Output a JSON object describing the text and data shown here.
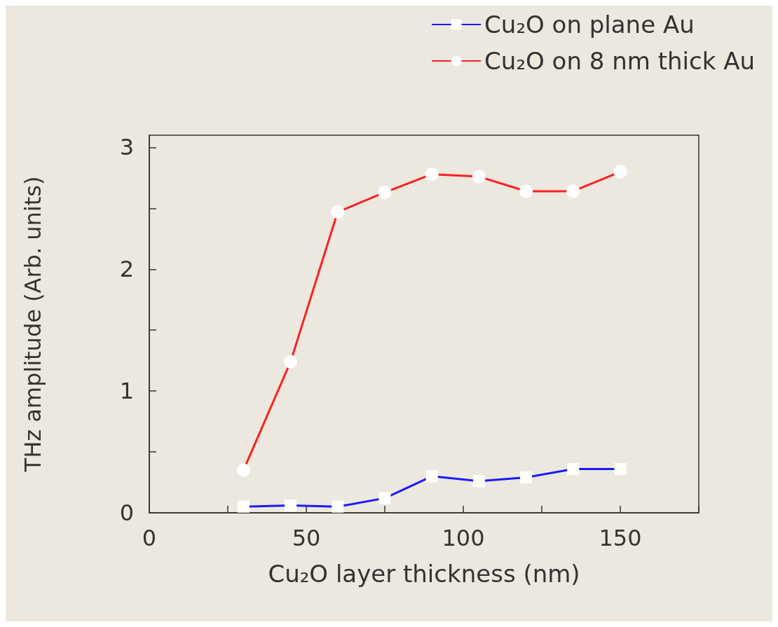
{
  "chart_data": {
    "type": "line",
    "xlabel": "Cu₂O layer thickness (nm)",
    "ylabel": "THz amplitude (Arb. units)",
    "x": [
      30,
      45,
      60,
      75,
      90,
      105,
      120,
      135,
      150
    ],
    "series": [
      {
        "name": "Cu₂O on plane Au",
        "color": "#1a1aff",
        "marker": "square",
        "values": [
          0.05,
          0.06,
          0.05,
          0.12,
          0.3,
          0.26,
          0.29,
          0.36,
          0.36
        ]
      },
      {
        "name": "Cu₂O on 8 nm thick Au",
        "color": "#ff2020",
        "marker": "circle",
        "values": [
          0.35,
          1.24,
          2.47,
          2.63,
          2.78,
          2.76,
          2.64,
          2.64,
          2.8
        ]
      }
    ],
    "xlim": [
      0,
      175
    ],
    "xticks": [
      0,
      {
        "value": 25,
        "label": null
      },
      50,
      {
        "value": 75,
        "label": null
      },
      100,
      {
        "value": 125,
        "label": null
      },
      150,
      {
        "value": 175,
        "label": null
      }
    ],
    "ylim": [
      0,
      3.1
    ],
    "yticks": [
      0,
      {
        "value": 0.5,
        "label": null
      },
      1,
      {
        "value": 1.5,
        "label": null
      },
      2,
      {
        "value": 2.5,
        "label": null
      },
      3
    ],
    "grid": false,
    "legend": "top right",
    "line_style": "solid"
  }
}
